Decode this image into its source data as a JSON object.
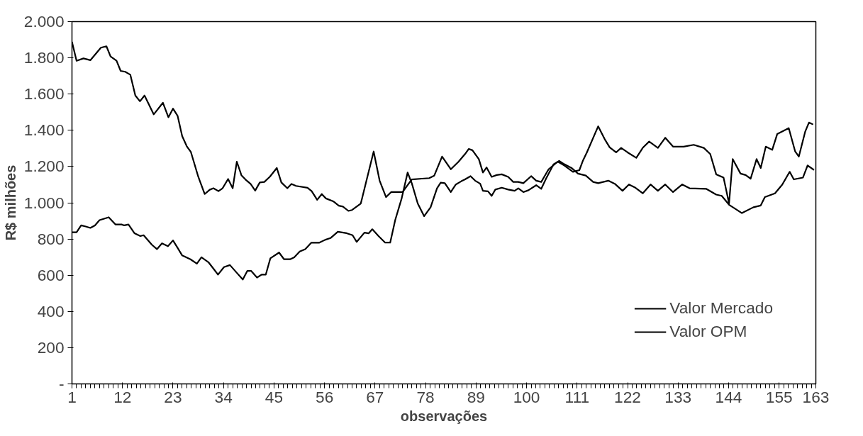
{
  "chart_data": {
    "type": "line",
    "xlabel": "observações",
    "ylabel": "R$ milhões",
    "xlim": [
      1,
      163
    ],
    "xticks": [
      1,
      12,
      23,
      34,
      45,
      56,
      67,
      78,
      89,
      100,
      111,
      122,
      133,
      144,
      155,
      163
    ],
    "ylim": [
      0,
      2000
    ],
    "yticks": [
      {
        "value": 0,
        "label": "-"
      },
      {
        "value": 200,
        "label": "200"
      },
      {
        "value": 400,
        "label": "400"
      },
      {
        "value": 600,
        "label": "600"
      },
      {
        "value": 800,
        "label": "800"
      },
      {
        "value": 1000,
        "label": "1.000"
      },
      {
        "value": 1200,
        "label": "1.200"
      },
      {
        "value": 1400,
        "label": "1.400"
      },
      {
        "value": 1600,
        "label": "1.600"
      },
      {
        "value": 1800,
        "label": "1.800"
      },
      {
        "value": 2000,
        "label": "2.000"
      }
    ],
    "grid": false,
    "legend": "bottom right",
    "line_style": "solid",
    "marker": "none",
    "series": [
      {
        "name": "Valor Mercado",
        "color": "#000000",
        "x": [
          1,
          2,
          3.5,
          5,
          7.3,
          8.5,
          9.4,
          10.7,
          11.6,
          12.6,
          13.7,
          14.8,
          15.8,
          16.8,
          18.8,
          20.8,
          22,
          23,
          24,
          25,
          26,
          26.9,
          28.5,
          29.9,
          31,
          31.8,
          32.9,
          33.8,
          35,
          36,
          36.9,
          37.9,
          38.8,
          39.9,
          40.9,
          41.9,
          42.9,
          44.1,
          45.6,
          46.6,
          47.9,
          48.8,
          49.8,
          52.3,
          53.2,
          54.4,
          55.4,
          56.3,
          57.9,
          59.1,
          60,
          61.2,
          62,
          63.9,
          66.7,
          68,
          69.4,
          70.5,
          73,
          75,
          77.2,
          78.8,
          79.9,
          81.6,
          83.5,
          85.2,
          86.6,
          87.4,
          88.2,
          89.6,
          90.5,
          91.3,
          92.4,
          93.5,
          94.6,
          96,
          97.1,
          98.2,
          99.3,
          101,
          102.1,
          103.2,
          104.8,
          106.8,
          108.2,
          110.1,
          111.5,
          112.3,
          113.1,
          115.6,
          117,
          118.1,
          119.5,
          120.6,
          122,
          123.9,
          125.3,
          126.7,
          128.6,
          130.2,
          131.9,
          134.2,
          136.4,
          138.6,
          140,
          141.3,
          142.9,
          144.1,
          144.9,
          146.6,
          147.7,
          148.8,
          150.1,
          151,
          152.1,
          153.5,
          154.6,
          157.1,
          158.5,
          159.3,
          160.7,
          161.5,
          162.4
        ],
        "values": [
          1888,
          1784,
          1797,
          1787,
          1856,
          1864,
          1808,
          1784,
          1728,
          1723,
          1707,
          1592,
          1560,
          1592,
          1488,
          1552,
          1472,
          1520,
          1480,
          1368,
          1312,
          1280,
          1144,
          1048,
          1072,
          1080,
          1064,
          1080,
          1131,
          1080,
          1227,
          1152,
          1128,
          1104,
          1067,
          1112,
          1115,
          1144,
          1192,
          1112,
          1080,
          1104,
          1093,
          1083,
          1064,
          1016,
          1048,
          1024,
          1008,
          984,
          979,
          955,
          960,
          996,
          1283,
          1122,
          1031,
          1059,
          1059,
          1129,
          1133,
          1136,
          1150,
          1255,
          1185,
          1227,
          1269,
          1297,
          1290,
          1241,
          1167,
          1195,
          1143,
          1153,
          1157,
          1143,
          1115,
          1115,
          1108,
          1147,
          1122,
          1115,
          1185,
          1227,
          1206,
          1171,
          1180,
          1234,
          1276,
          1422,
          1352,
          1306,
          1278,
          1303,
          1278,
          1248,
          1303,
          1338,
          1303,
          1359,
          1310,
          1310,
          1320,
          1303,
          1269,
          1157,
          1139,
          996,
          1241,
          1161,
          1153,
          1133,
          1241,
          1192,
          1310,
          1292,
          1380,
          1412,
          1283,
          1255,
          1394,
          1443,
          1432
        ]
      },
      {
        "name": "Valor OPM",
        "color": "#000000",
        "x": [
          1,
          2,
          3,
          4,
          5,
          6,
          7,
          9,
          10.5,
          11.8,
          12.4,
          13.3,
          14.6,
          15.9,
          16.6,
          18.4,
          19.5,
          20.6,
          21.9,
          23,
          24.1,
          25,
          26.8,
          28.2,
          29.2,
          30.7,
          31.7,
          32.8,
          34.1,
          35.4,
          36.8,
          38.2,
          39.2,
          40,
          41.3,
          42.3,
          43.2,
          44.2,
          46.1,
          47.2,
          48.5,
          49.4,
          50.6,
          51.8,
          53.1,
          54.8,
          56.1,
          57.3,
          58.9,
          60.8,
          62.1,
          63,
          64.7,
          65.6,
          66.4,
          67.8,
          69.2,
          70.3,
          71.4,
          72.8,
          74.1,
          75,
          76.3,
          77.7,
          79.1,
          80.5,
          81.3,
          82.2,
          83.5,
          84.6,
          85.8,
          86.6,
          87.8,
          88.8,
          89.9,
          90.5,
          91.6,
          92.4,
          93.2,
          94.6,
          96,
          97.4,
          98.2,
          99.3,
          100.4,
          102.1,
          103.2,
          104.3,
          105.9,
          107.1,
          108.2,
          109.8,
          111.2,
          112.9,
          114.5,
          115.6,
          117.8,
          119.2,
          120.9,
          122.3,
          123.7,
          125.3,
          127,
          128.6,
          130.2,
          131.9,
          133.9,
          135.5,
          139.1,
          141.3,
          142.5,
          144.1,
          146.9,
          149.4,
          151,
          151.9,
          154.1,
          155.7,
          157.3,
          158.2,
          160.2,
          161.2,
          162.6
        ],
        "values": [
          837,
          837,
          875,
          869,
          861,
          875,
          904,
          920,
          880,
          880,
          875,
          880,
          832,
          816,
          821,
          768,
          744,
          776,
          760,
          792,
          747,
          709,
          688,
          664,
          699,
          672,
          640,
          603,
          645,
          656,
          616,
          576,
          624,
          624,
          587,
          603,
          603,
          693,
          725,
          688,
          688,
          699,
          731,
          744,
          779,
          779,
          795,
          805,
          840,
          832,
          821,
          784,
          835,
          831,
          854,
          815,
          780,
          780,
          905,
          1024,
          1167,
          1108,
          996,
          926,
          975,
          1080,
          1111,
          1108,
          1059,
          1101,
          1119,
          1129,
          1147,
          1122,
          1105,
          1066,
          1063,
          1038,
          1073,
          1083,
          1073,
          1066,
          1080,
          1059,
          1069,
          1097,
          1077,
          1136,
          1213,
          1231,
          1213,
          1192,
          1161,
          1150,
          1115,
          1108,
          1122,
          1105,
          1066,
          1101,
          1083,
          1052,
          1101,
          1066,
          1101,
          1059,
          1101,
          1080,
          1077,
          1045,
          1038,
          989,
          943,
          975,
          985,
          1031,
          1052,
          1101,
          1171,
          1129,
          1139,
          1206,
          1181
        ]
      }
    ]
  }
}
